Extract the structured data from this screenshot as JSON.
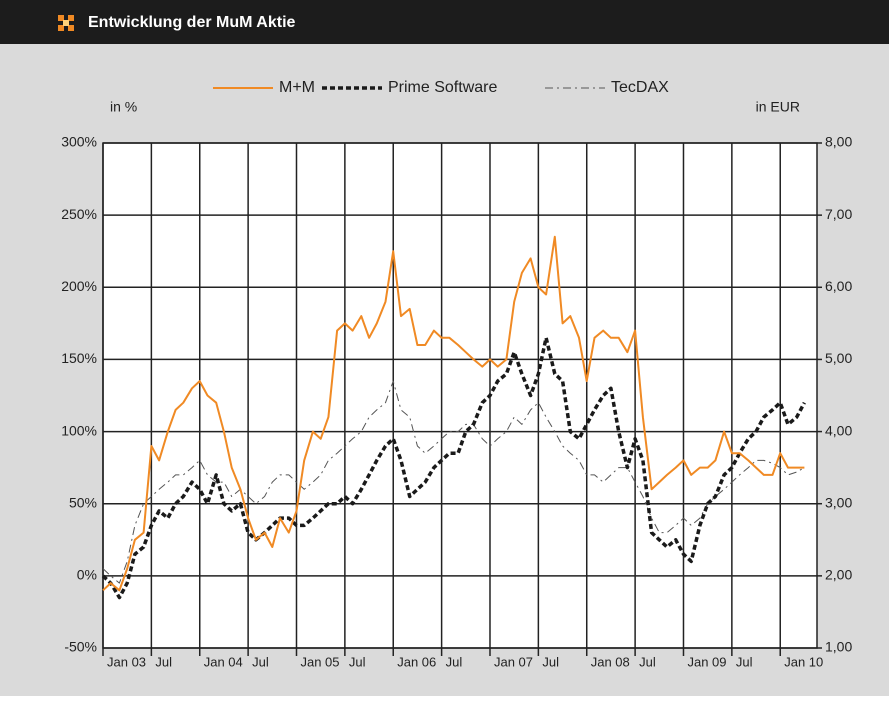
{
  "chart_data": {
    "type": "line",
    "title": "Entwicklung der MuM Aktie",
    "y_label": "in %",
    "y2_label": "in EUR",
    "grid": true,
    "legend": "top",
    "xlim": [
      2003,
      2010.38
    ],
    "xticks": [
      {
        "value": 2003,
        "label": "Jan 03"
      },
      {
        "value": 2003.5,
        "label": "Jul"
      },
      {
        "value": 2004,
        "label": "Jan 04"
      },
      {
        "value": 2004.5,
        "label": "Jul"
      },
      {
        "value": 2005,
        "label": "Jan 05"
      },
      {
        "value": 2005.5,
        "label": "Jul"
      },
      {
        "value": 2006,
        "label": "Jan 06"
      },
      {
        "value": 2006.5,
        "label": "Jul"
      },
      {
        "value": 2007,
        "label": "Jan 07"
      },
      {
        "value": 2007.5,
        "label": "Jul"
      },
      {
        "value": 2008,
        "label": "Jan 08"
      },
      {
        "value": 2008.5,
        "label": "Jul"
      },
      {
        "value": 2009,
        "label": "Jan 09"
      },
      {
        "value": 2009.5,
        "label": "Jul"
      },
      {
        "value": 2010,
        "label": "Jan 10"
      }
    ],
    "ylim": [
      -50,
      300
    ],
    "yticks": [
      {
        "value": -50,
        "label": "-50%"
      },
      {
        "value": 0,
        "label": "0%"
      },
      {
        "value": 50,
        "label": "50%"
      },
      {
        "value": 100,
        "label": "100%"
      },
      {
        "value": 150,
        "label": "150%"
      },
      {
        "value": 200,
        "label": "200%"
      },
      {
        "value": 250,
        "label": "250%"
      },
      {
        "value": 300,
        "label": "300%"
      }
    ],
    "y2lim": [
      1,
      8
    ],
    "y2ticks": [
      {
        "value": 1,
        "label": "1,00"
      },
      {
        "value": 2,
        "label": "2,00"
      },
      {
        "value": 3,
        "label": "3,00"
      },
      {
        "value": 4,
        "label": "4,00"
      },
      {
        "value": 5,
        "label": "5,00"
      },
      {
        "value": 6,
        "label": "6,00"
      },
      {
        "value": 7,
        "label": "7,00"
      },
      {
        "value": 8,
        "label": "8,00"
      }
    ],
    "x": [
      2003,
      2003.08,
      2003.17,
      2003.25,
      2003.33,
      2003.42,
      2003.5,
      2003.58,
      2003.67,
      2003.75,
      2003.83,
      2003.92,
      2004,
      2004.08,
      2004.17,
      2004.25,
      2004.33,
      2004.42,
      2004.5,
      2004.58,
      2004.67,
      2004.75,
      2004.83,
      2004.92,
      2005,
      2005.08,
      2005.17,
      2005.25,
      2005.33,
      2005.42,
      2005.5,
      2005.58,
      2005.67,
      2005.75,
      2005.83,
      2005.92,
      2006,
      2006.08,
      2006.17,
      2006.25,
      2006.33,
      2006.42,
      2006.5,
      2006.58,
      2006.67,
      2006.75,
      2006.83,
      2006.92,
      2007,
      2007.08,
      2007.17,
      2007.25,
      2007.33,
      2007.42,
      2007.5,
      2007.58,
      2007.67,
      2007.75,
      2007.83,
      2007.92,
      2008,
      2008.08,
      2008.17,
      2008.25,
      2008.33,
      2008.42,
      2008.5,
      2008.58,
      2008.67,
      2008.75,
      2008.83,
      2008.92,
      2009,
      2009.08,
      2009.17,
      2009.25,
      2009.33,
      2009.42,
      2009.5,
      2009.58,
      2009.67,
      2009.75,
      2009.83,
      2009.92,
      2010,
      2010.08,
      2010.17,
      2010.25
    ],
    "series": [
      {
        "name": "M+M",
        "color": "#f08a24",
        "dash": "solid",
        "width": 2,
        "values": [
          -10,
          -5,
          -10,
          5,
          25,
          30,
          90,
          80,
          100,
          115,
          120,
          130,
          135,
          125,
          120,
          100,
          75,
          60,
          40,
          25,
          30,
          20,
          40,
          30,
          45,
          80,
          100,
          95,
          110,
          170,
          175,
          170,
          180,
          165,
          175,
          190,
          225,
          180,
          185,
          160,
          160,
          170,
          165,
          165,
          160,
          155,
          150,
          145,
          150,
          145,
          150,
          190,
          210,
          220,
          200,
          195,
          235,
          175,
          180,
          165,
          135,
          165,
          170,
          165,
          165,
          155,
          170,
          110,
          60,
          65,
          70,
          75,
          80,
          70,
          75,
          75,
          80,
          100,
          85,
          85,
          80,
          75,
          70,
          70,
          85,
          75,
          75,
          75
        ]
      },
      {
        "name": "Prime Software",
        "color": "#1a1a1a",
        "dash": "dashed",
        "width": 3.5,
        "values": [
          0,
          -5,
          -15,
          -5,
          15,
          20,
          35,
          45,
          40,
          50,
          55,
          65,
          60,
          50,
          70,
          50,
          45,
          50,
          30,
          25,
          30,
          35,
          40,
          40,
          35,
          35,
          40,
          45,
          50,
          50,
          55,
          50,
          60,
          70,
          80,
          90,
          95,
          80,
          55,
          60,
          65,
          75,
          80,
          85,
          85,
          100,
          105,
          120,
          125,
          135,
          140,
          155,
          140,
          125,
          140,
          165,
          140,
          135,
          100,
          95,
          105,
          115,
          125,
          130,
          100,
          75,
          95,
          80,
          30,
          25,
          20,
          25,
          15,
          10,
          35,
          50,
          55,
          70,
          75,
          85,
          95,
          100,
          110,
          115,
          120,
          105,
          110,
          120
        ]
      },
      {
        "name": "TecDAX",
        "color": "#555555",
        "dash": "dashdot",
        "width": 1,
        "values": [
          5,
          0,
          -5,
          10,
          35,
          50,
          55,
          60,
          65,
          70,
          70,
          75,
          80,
          70,
          65,
          65,
          55,
          60,
          55,
          50,
          55,
          65,
          70,
          70,
          65,
          60,
          65,
          70,
          80,
          85,
          90,
          95,
          100,
          110,
          115,
          120,
          135,
          115,
          110,
          90,
          85,
          90,
          95,
          100,
          100,
          105,
          105,
          95,
          90,
          95,
          100,
          110,
          105,
          115,
          120,
          110,
          100,
          90,
          85,
          80,
          70,
          70,
          65,
          70,
          75,
          75,
          65,
          55,
          40,
          30,
          30,
          35,
          40,
          35,
          40,
          50,
          55,
          60,
          65,
          70,
          75,
          80,
          80,
          78,
          75,
          70,
          72,
          75
        ]
      }
    ]
  }
}
